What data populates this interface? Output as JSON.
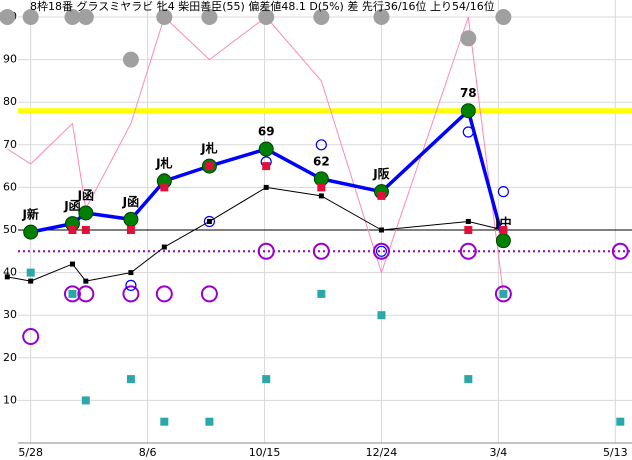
{
  "chart_data": {
    "type": "line",
    "title": "8枠18番 グラスミヤラビ 牝4 柴田善臣(55) 偏差値48.1 D(5%) 差 先行36/16位 上り54/16位",
    "x": [
      -14,
      0,
      25,
      33,
      60,
      80,
      107,
      141,
      174,
      210,
      262,
      283,
      353
    ],
    "xlim": [
      -10,
      360
    ],
    "xticks": [
      {
        "value": 0,
        "label": "5/28"
      },
      {
        "value": 70,
        "label": "8/6"
      },
      {
        "value": 140,
        "label": "10/15"
      },
      {
        "value": 210,
        "label": "12/24"
      },
      {
        "value": 280,
        "label": "3/4"
      },
      {
        "value": 350,
        "label": "5/13"
      }
    ],
    "ylim": [
      0,
      100
    ],
    "yticks": [
      10,
      20,
      30,
      40,
      50,
      60,
      70,
      80,
      90,
      100
    ],
    "grid": true,
    "hlines": [
      {
        "value": 78,
        "color": "#ffff00",
        "style": "solid"
      },
      {
        "value": 50,
        "color": "#000000",
        "style": "solid"
      },
      {
        "value": 45,
        "color": "#9900cc",
        "style": "dotted"
      }
    ],
    "series": [
      {
        "style": "line",
        "color": "#ff88bb",
        "values": [
          69,
          65.5,
          75,
          55,
          75,
          100,
          90,
          100,
          85,
          40,
          100,
          35,
          null
        ]
      },
      {
        "style": "line-markers",
        "marker": "square",
        "color": "#000000",
        "values": [
          39,
          38,
          42,
          38,
          40,
          46,
          52,
          60,
          58,
          50,
          52,
          50,
          null
        ]
      },
      {
        "style": "markers",
        "marker": "square",
        "color": "#2aa7a7",
        "values": [
          null,
          40,
          35,
          10,
          15,
          5,
          5,
          15,
          35,
          30,
          15,
          35,
          5
        ]
      },
      {
        "style": "markers",
        "marker": "ring",
        "color": "#9900cc",
        "values": [
          null,
          25,
          35,
          35,
          35,
          35,
          35,
          45,
          45,
          45,
          45,
          35,
          45
        ]
      },
      {
        "style": "markers",
        "marker": "small-ring",
        "color": "#0000ff",
        "values": [
          null,
          null,
          null,
          null,
          37,
          62,
          52,
          66,
          70,
          45,
          73,
          59,
          null
        ]
      },
      {
        "style": "markers",
        "marker": "circle",
        "color": "#a0a0a0",
        "values": [
          100,
          100,
          100,
          100,
          90,
          100,
          100,
          100,
          100,
          100,
          95,
          100,
          null
        ]
      },
      {
        "style": "line-markers",
        "marker": "circle",
        "color": "#0000ff",
        "marker_color": "#008000",
        "values": [
          null,
          49.5,
          51.5,
          54,
          52.5,
          61.5,
          65,
          69,
          62,
          59,
          78,
          47.5,
          null
        ],
        "labels": [
          null,
          "J新",
          "J函",
          "J函",
          "J函",
          "J札",
          "J札",
          "69",
          "62",
          "J阪",
          "78",
          "J中",
          null
        ]
      },
      {
        "style": "markers",
        "marker": "square",
        "color": "#e0103a",
        "values": [
          null,
          null,
          50,
          50,
          50,
          60,
          65,
          65,
          60,
          58,
          50,
          50,
          null
        ]
      }
    ]
  }
}
